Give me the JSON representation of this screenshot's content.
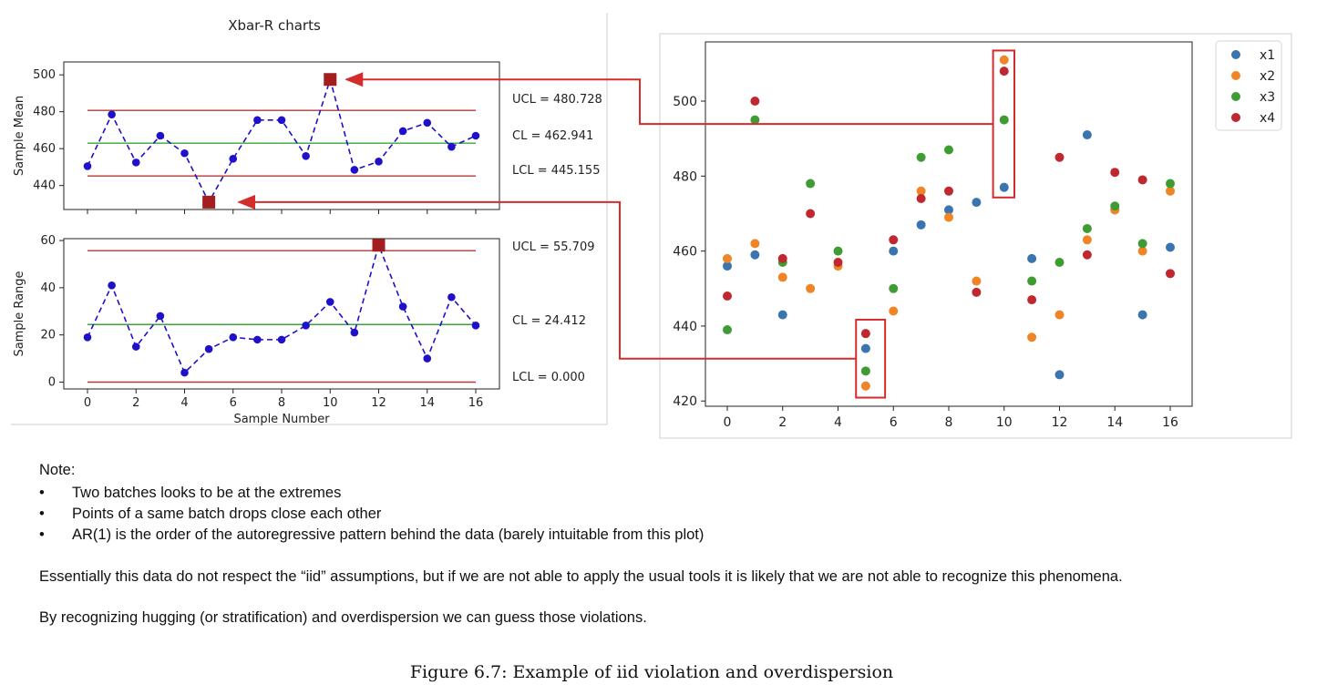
{
  "chart_data": [
    {
      "type": "line",
      "title": "Xbar-R charts",
      "xlabel": "",
      "ylabel": "Sample Mean",
      "x": [
        0,
        1,
        2,
        3,
        4,
        5,
        6,
        7,
        8,
        9,
        10,
        11,
        12,
        13,
        14,
        15,
        16
      ],
      "values": [
        450.5,
        478.5,
        452.5,
        467,
        457.5,
        431,
        454.5,
        475.5,
        475.5,
        456,
        497.5,
        448.5,
        453,
        469.5,
        474,
        461,
        467
      ],
      "out_of_control": [
        5,
        10
      ],
      "ylim": [
        427,
        507
      ],
      "yticks": [
        440,
        460,
        480,
        500
      ],
      "control_lines": [
        {
          "label": "UCL = 480.728",
          "value": 480.728
        },
        {
          "label": "CL = 462.941",
          "value": 462.941
        },
        {
          "label": "LCL = 445.155",
          "value": 445.155
        }
      ],
      "colors": {
        "line": "#1f10c9",
        "limit": "#b03a3a",
        "center": "#3aa63a",
        "flag": "#a31f1f"
      }
    },
    {
      "type": "line",
      "xlabel": "Sample Number",
      "ylabel": "Sample Range",
      "x": [
        0,
        1,
        2,
        3,
        4,
        5,
        6,
        7,
        8,
        9,
        10,
        11,
        12,
        13,
        14,
        15,
        16
      ],
      "values": [
        19,
        41,
        15,
        28,
        4,
        14,
        19,
        18,
        18,
        24,
        34,
        21,
        58,
        32,
        10,
        36,
        24
      ],
      "out_of_control": [
        12
      ],
      "ylim": [
        -2.9,
        60.8
      ],
      "yticks": [
        0,
        20,
        40,
        60
      ],
      "xticks": [
        0,
        2,
        4,
        6,
        8,
        10,
        12,
        14,
        16
      ],
      "control_lines": [
        {
          "label": "UCL = 55.709",
          "value": 55.709
        },
        {
          "label": "CL = 24.412",
          "value": 24.412
        },
        {
          "label": "LCL = 0.000",
          "value": 0.0
        }
      ]
    },
    {
      "type": "scatter",
      "x": [
        0,
        1,
        2,
        3,
        4,
        5,
        6,
        7,
        8,
        9,
        10,
        11,
        12,
        13,
        14,
        15,
        16
      ],
      "xticks": [
        0,
        2,
        4,
        6,
        8,
        10,
        12,
        14,
        16
      ],
      "yticks": [
        420,
        440,
        460,
        480,
        500
      ],
      "ylim": [
        418.6,
        515.8
      ],
      "legend": "top-right",
      "series": [
        {
          "name": "x1",
          "color": "#3a75b0",
          "values": [
            456,
            459,
            443,
            null,
            null,
            434,
            460,
            467,
            471,
            473,
            477,
            458,
            427,
            491,
            471,
            443,
            461
          ]
        },
        {
          "name": "x2",
          "color": "#ef8526",
          "values": [
            458,
            462,
            453,
            450,
            456,
            424,
            444,
            476,
            469,
            452,
            511,
            437,
            443,
            463,
            471,
            460,
            476
          ]
        },
        {
          "name": "x3",
          "color": "#3f9c35",
          "values": [
            439,
            495,
            457,
            478,
            460,
            428,
            450,
            485,
            487,
            null,
            495,
            452,
            457,
            466,
            472,
            462,
            478
          ]
        },
        {
          "name": "x4",
          "color": "#c0282f",
          "values": [
            448,
            500,
            458,
            470,
            457,
            438,
            463,
            474,
            476,
            449,
            508,
            447,
            485,
            459,
            481,
            479,
            454
          ]
        }
      ]
    }
  ],
  "notes": {
    "heading": "Note:",
    "bullet_char": "•",
    "bullets": [
      "Two batches looks to be at the extremes",
      "Points of a same batch drops close each other",
      "AR(1) is the order of the autoregressive pattern behind the data (barely intuitable from this plot)"
    ],
    "paragraph1": "Essentially this data do not respect the “iid” assumptions, but if we are not able to apply the usual tools it is likely that we are not able to recognize this phenomena.",
    "paragraph2": "By recognizing hugging (or stratification) and overdispersion we can guess those violations."
  },
  "caption": "Figure 6.7: Example of iid violation and overdispersion",
  "annotation_colors": {
    "arrow": "#d42b2b",
    "highlight_box": "#d42b2b"
  }
}
